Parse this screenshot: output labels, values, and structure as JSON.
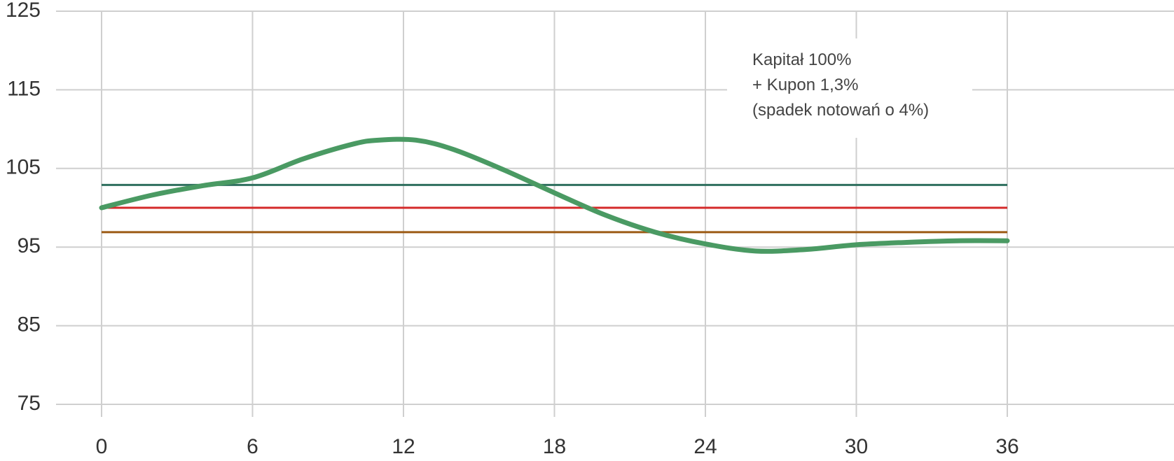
{
  "chart_data": {
    "type": "line",
    "xlim": [
      0,
      36
    ],
    "ylim": [
      75,
      125
    ],
    "x_ticks": [
      0,
      6,
      12,
      18,
      24,
      30,
      36
    ],
    "y_ticks": [
      75,
      85,
      95,
      105,
      115,
      125
    ],
    "grid": true,
    "series": [
      {
        "color": "#4a9a63",
        "points": [
          {
            "x": 0,
            "y": 100
          },
          {
            "x": 2,
            "y": 101.6
          },
          {
            "x": 4,
            "y": 102.8
          },
          {
            "x": 6,
            "y": 103.8
          },
          {
            "x": 8,
            "y": 106.2
          },
          {
            "x": 10,
            "y": 108.1
          },
          {
            "x": 11,
            "y": 108.6
          },
          {
            "x": 12.5,
            "y": 108.6
          },
          {
            "x": 14,
            "y": 107.4
          },
          {
            "x": 16,
            "y": 104.8
          },
          {
            "x": 18,
            "y": 101.9
          },
          {
            "x": 20,
            "y": 99.1
          },
          {
            "x": 22,
            "y": 96.9
          },
          {
            "x": 24,
            "y": 95.4
          },
          {
            "x": 26,
            "y": 94.5
          },
          {
            "x": 28,
            "y": 94.7
          },
          {
            "x": 30,
            "y": 95.3
          },
          {
            "x": 32,
            "y": 95.6
          },
          {
            "x": 34,
            "y": 95.8
          },
          {
            "x": 36,
            "y": 95.8
          }
        ]
      }
    ],
    "reference_lines": [
      {
        "y": 102.9,
        "color": "#2e6f5e"
      },
      {
        "y": 100,
        "color": "#d42a2a"
      },
      {
        "y": 96.9,
        "color": "#9c5a14"
      }
    ],
    "annotation": {
      "lines": [
        "Kapitał 100%",
        "+ Kupon 1,3%",
        "(spadek notowań o 4%)"
      ]
    }
  }
}
